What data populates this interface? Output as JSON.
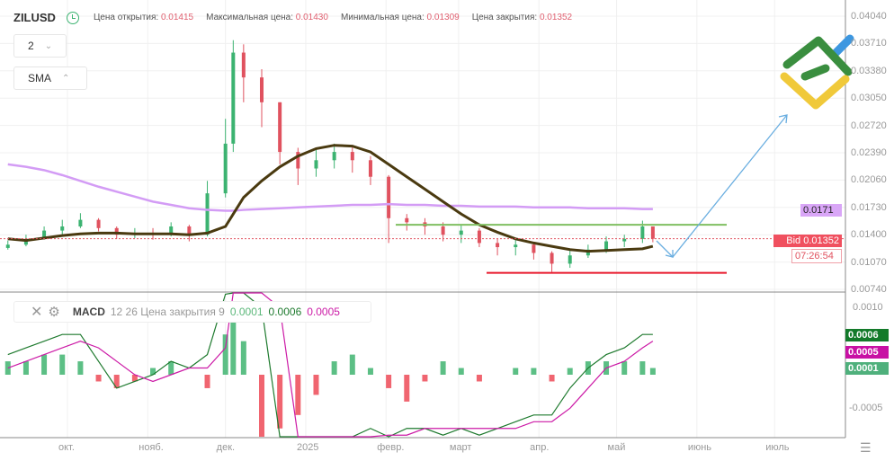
{
  "header": {
    "symbol": "ZILUSD",
    "open_label": "Цена открытия:",
    "open": "0.01415",
    "high_label": "Максимальная цена:",
    "high": "0.01430",
    "low_label": "Минимальная цена:",
    "low": "0.01309",
    "close_label": "Цена закрытия:",
    "close": "0.01352"
  },
  "controls": {
    "interval": "2",
    "indicator": "SMA"
  },
  "macd_legend": {
    "name": "MACD",
    "params": "12 26 Цена закрытия 9",
    "hist": "0.0001",
    "macd": "0.0006",
    "signal": "0.0005"
  },
  "price_axis": [
    "0.04040",
    "0.03710",
    "0.03380",
    "0.03050",
    "0.02720",
    "0.02390",
    "0.02060",
    "0.01730",
    "0.01400",
    "0.01070",
    "0.00740"
  ],
  "macd_axis": [
    "0.0010",
    "-0.0005"
  ],
  "time_axis": [
    {
      "label": "окт.",
      "date": "2024-10-01"
    },
    {
      "label": "нояб.",
      "date": "2024-11-01"
    },
    {
      "label": "дек.",
      "date": "2024-12-01"
    },
    {
      "label": "2025",
      "date": "2025-01-01"
    },
    {
      "label": "февр.",
      "date": "2025-02-01"
    },
    {
      "label": "март",
      "date": "2025-03-01"
    },
    {
      "label": "апр.",
      "date": "2025-04-01"
    },
    {
      "label": "май",
      "date": "2025-05-01"
    },
    {
      "label": "июнь",
      "date": "2025-06-01"
    },
    {
      "label": "июль",
      "date": "2025-07-01"
    }
  ],
  "labels": {
    "sma_value": "0.0171",
    "bid": "Bid 0.01352",
    "countdown": "07:26:54",
    "macd_val": "0.0006",
    "signal_val": "0.0005",
    "hist_val": "0.0001"
  },
  "colors": {
    "up": "#3cb371",
    "down": "#e0525f",
    "sma_long": "#d39cf5",
    "sma_short": "#4a3a10",
    "support": "#e8192c",
    "resistance": "#7fbf60",
    "arrow": "#6aaee0",
    "macd": "#1e7a2e",
    "signal": "#cc1aa6"
  },
  "chart_data": {
    "type": "candlestick",
    "dates": [
      "2024-09-08",
      "2024-09-15",
      "2024-09-22",
      "2024-09-29",
      "2024-10-06",
      "2024-10-13",
      "2024-10-20",
      "2024-10-27",
      "2024-11-03",
      "2024-11-10",
      "2024-11-17",
      "2024-11-24",
      "2024-12-01",
      "2024-12-04",
      "2024-12-08",
      "2024-12-15",
      "2024-12-22",
      "2024-12-29",
      "2025-01-05",
      "2025-01-12",
      "2025-01-19",
      "2025-01-26",
      "2025-02-02",
      "2025-02-09",
      "2025-02-16",
      "2025-02-23",
      "2025-03-02",
      "2025-03-09",
      "2025-03-16",
      "2025-03-23",
      "2025-03-30",
      "2025-04-06",
      "2025-04-13",
      "2025-04-20",
      "2025-04-27",
      "2025-05-04",
      "2025-05-11",
      "2025-05-15"
    ],
    "close": [
      0.0128,
      0.0135,
      0.0145,
      0.015,
      0.0158,
      0.0148,
      0.014,
      0.0142,
      0.014,
      0.015,
      0.014,
      0.019,
      0.025,
      0.036,
      0.033,
      0.03,
      0.024,
      0.022,
      0.023,
      0.024,
      0.023,
      0.021,
      0.016,
      0.0155,
      0.015,
      0.014,
      0.0145,
      0.013,
      0.0125,
      0.0128,
      0.0118,
      0.0105,
      0.0115,
      0.0122,
      0.0132,
      0.0135,
      0.015,
      0.01352
    ],
    "high": [
      0.0133,
      0.014,
      0.015,
      0.0158,
      0.0166,
      0.016,
      0.015,
      0.0148,
      0.0148,
      0.0155,
      0.0152,
      0.0205,
      0.028,
      0.0375,
      0.037,
      0.034,
      0.03,
      0.0245,
      0.0245,
      0.025,
      0.0248,
      0.0235,
      0.0212,
      0.0165,
      0.016,
      0.0155,
      0.0152,
      0.0148,
      0.0135,
      0.0134,
      0.013,
      0.012,
      0.0122,
      0.0128,
      0.0138,
      0.014,
      0.0157,
      0.0143
    ],
    "low": [
      0.0122,
      0.0126,
      0.0134,
      0.014,
      0.0148,
      0.0144,
      0.0135,
      0.0136,
      0.0134,
      0.0138,
      0.0132,
      0.0138,
      0.0185,
      0.024,
      0.03,
      0.027,
      0.0225,
      0.02,
      0.021,
      0.022,
      0.0215,
      0.02,
      0.013,
      0.0145,
      0.014,
      0.0132,
      0.013,
      0.0125,
      0.0115,
      0.0115,
      0.011,
      0.0095,
      0.01,
      0.0112,
      0.0118,
      0.0125,
      0.013,
      0.01309
    ],
    "sma_long": [
      0.0225,
      0.0222,
      0.0218,
      0.0212,
      0.0205,
      0.0198,
      0.0192,
      0.0186,
      0.018,
      0.0176,
      0.0172,
      0.017,
      0.0169,
      0.0169,
      0.017,
      0.0171,
      0.0172,
      0.0173,
      0.0174,
      0.0175,
      0.0176,
      0.0176,
      0.0177,
      0.0176,
      0.0176,
      0.0175,
      0.0175,
      0.0174,
      0.0174,
      0.0174,
      0.0173,
      0.0173,
      0.0173,
      0.0172,
      0.0172,
      0.0172,
      0.0171,
      0.0171
    ],
    "sma_short": [
      0.0135,
      0.0133,
      0.0136,
      0.0139,
      0.0141,
      0.0142,
      0.0142,
      0.0141,
      0.0141,
      0.0141,
      0.014,
      0.0142,
      0.015,
      0.0165,
      0.0185,
      0.0205,
      0.0222,
      0.0235,
      0.0244,
      0.0248,
      0.0247,
      0.024,
      0.0225,
      0.021,
      0.0195,
      0.018,
      0.0165,
      0.0152,
      0.0143,
      0.0135,
      0.013,
      0.0126,
      0.0122,
      0.012,
      0.0121,
      0.0122,
      0.0123,
      0.0126
    ],
    "macd": [
      0.0003,
      0.0004,
      0.0005,
      0.0006,
      0.0006,
      0.0002,
      -0.0002,
      -0.0001,
      0.0,
      0.0002,
      0.0001,
      0.0003,
      0.0012,
      0.003,
      0.003,
      0.001,
      -0.002,
      -0.003,
      -0.0025,
      -0.0015,
      -0.001,
      -0.0008,
      -0.001,
      -0.0008,
      -0.0008,
      -0.0009,
      -0.0008,
      -0.0009,
      -0.0008,
      -0.0007,
      -0.0006,
      -0.0006,
      -0.0002,
      0.0001,
      0.0003,
      0.0004,
      0.0006,
      0.0006
    ],
    "signal": [
      0.0001,
      0.0002,
      0.0003,
      0.0004,
      0.0005,
      0.0004,
      0.0002,
      0.0,
      -0.0001,
      0.0,
      0.0001,
      0.0001,
      0.0004,
      0.0015,
      0.0025,
      0.0025,
      0.001,
      -0.001,
      -0.0022,
      -0.002,
      -0.0016,
      -0.0012,
      -0.0009,
      -0.0009,
      -0.0008,
      -0.0008,
      -0.0008,
      -0.0008,
      -0.0008,
      -0.0008,
      -0.0007,
      -0.0007,
      -0.0005,
      -0.0002,
      0.0001,
      0.0002,
      0.0004,
      0.0005
    ],
    "hist": [
      0.0002,
      0.0002,
      0.0003,
      0.0003,
      0.0002,
      -0.0001,
      -0.0002,
      -0.0001,
      0.0001,
      0.0002,
      0.0,
      -0.0002,
      0.0006,
      0.0008,
      0.0005,
      -0.001,
      -0.0008,
      -0.0006,
      -0.0003,
      0.0002,
      0.0003,
      0.0001,
      -0.0002,
      -0.0004,
      -0.0001,
      0.0002,
      0.0001,
      -0.0001,
      0.0,
      0.0001,
      0.0001,
      -0.0001,
      0.0001,
      0.0002,
      0.0002,
      0.0002,
      0.0002,
      0.0001
    ],
    "levels": {
      "resistance": 0.0152,
      "support": 0.0094
    },
    "ylim": [
      0.007,
      0.041
    ],
    "macd_ylim": [
      -0.00125,
      0.00125
    ]
  }
}
